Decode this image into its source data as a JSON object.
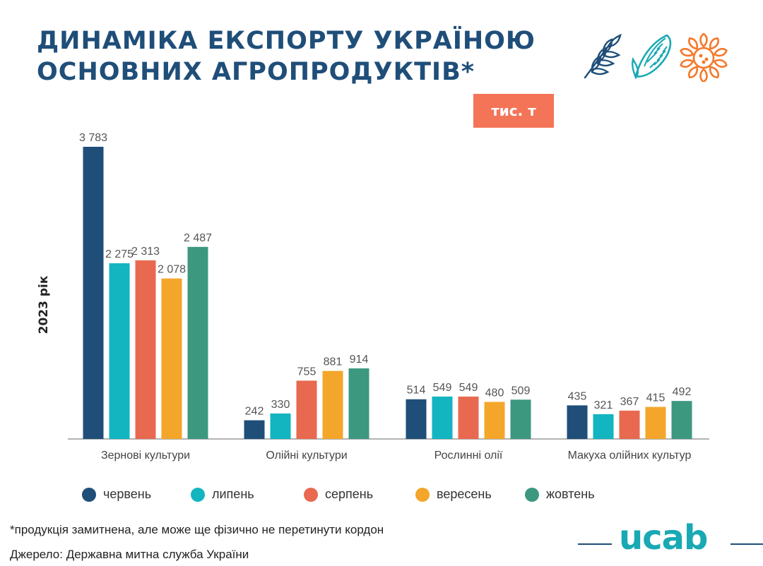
{
  "title": {
    "line1": "ДИНАМІКА ЕКСПОРТУ УКРАЇНОЮ",
    "line2": "ОСНОВНИХ АГРОПРОДУКТІВ*"
  },
  "unit_label": "тис. т",
  "icons": [
    "wheat-icon",
    "corn-icon",
    "sunflower-icon"
  ],
  "colors": {
    "title": "#1f4e79",
    "accent": "#f47458",
    "axis": "#9a9a9a",
    "label_text": "#555555"
  },
  "footnote": "*продукція замитнена, але може ще фізично не перетинути кордон",
  "source": "Джерело: Державна митна служба України",
  "logo_text": "ucab",
  "chart_data": {
    "type": "bar",
    "title": "ДИНАМІКА ЕКСПОРТУ УКРАЇНОЮ ОСНОВНИХ АГРОПРОДУКТІВ*",
    "unit": "тис. т",
    "xlabel": "",
    "ylabel": "2023 рік",
    "ylim": [
      0,
      3783
    ],
    "grid": false,
    "legend_position": "bottom",
    "categories": [
      "Зернові культури",
      "Олійні культури",
      "Рослинні олії",
      "Макуха олійних культур"
    ],
    "series": [
      {
        "name": "червень",
        "color": "#1f4e79",
        "values": [
          3783,
          242,
          514,
          435
        ],
        "labels": [
          "3 783",
          "242",
          "514",
          "435"
        ]
      },
      {
        "name": "липень",
        "color": "#12b5c0",
        "values": [
          2275,
          330,
          549,
          321
        ],
        "labels": [
          "2 275",
          "330",
          "549",
          "321"
        ]
      },
      {
        "name": "серпень",
        "color": "#e8694f",
        "values": [
          2313,
          755,
          549,
          367
        ],
        "labels": [
          "2 313",
          "755",
          "549",
          "367"
        ]
      },
      {
        "name": "вересень",
        "color": "#f4a62a",
        "values": [
          2078,
          881,
          480,
          415
        ],
        "labels": [
          "2 078",
          "881",
          "480",
          "415"
        ]
      },
      {
        "name": "жовтень",
        "color": "#3d9880",
        "values": [
          2487,
          914,
          509,
          492
        ],
        "labels": [
          "2 487",
          "914",
          "509",
          "492"
        ]
      }
    ]
  }
}
